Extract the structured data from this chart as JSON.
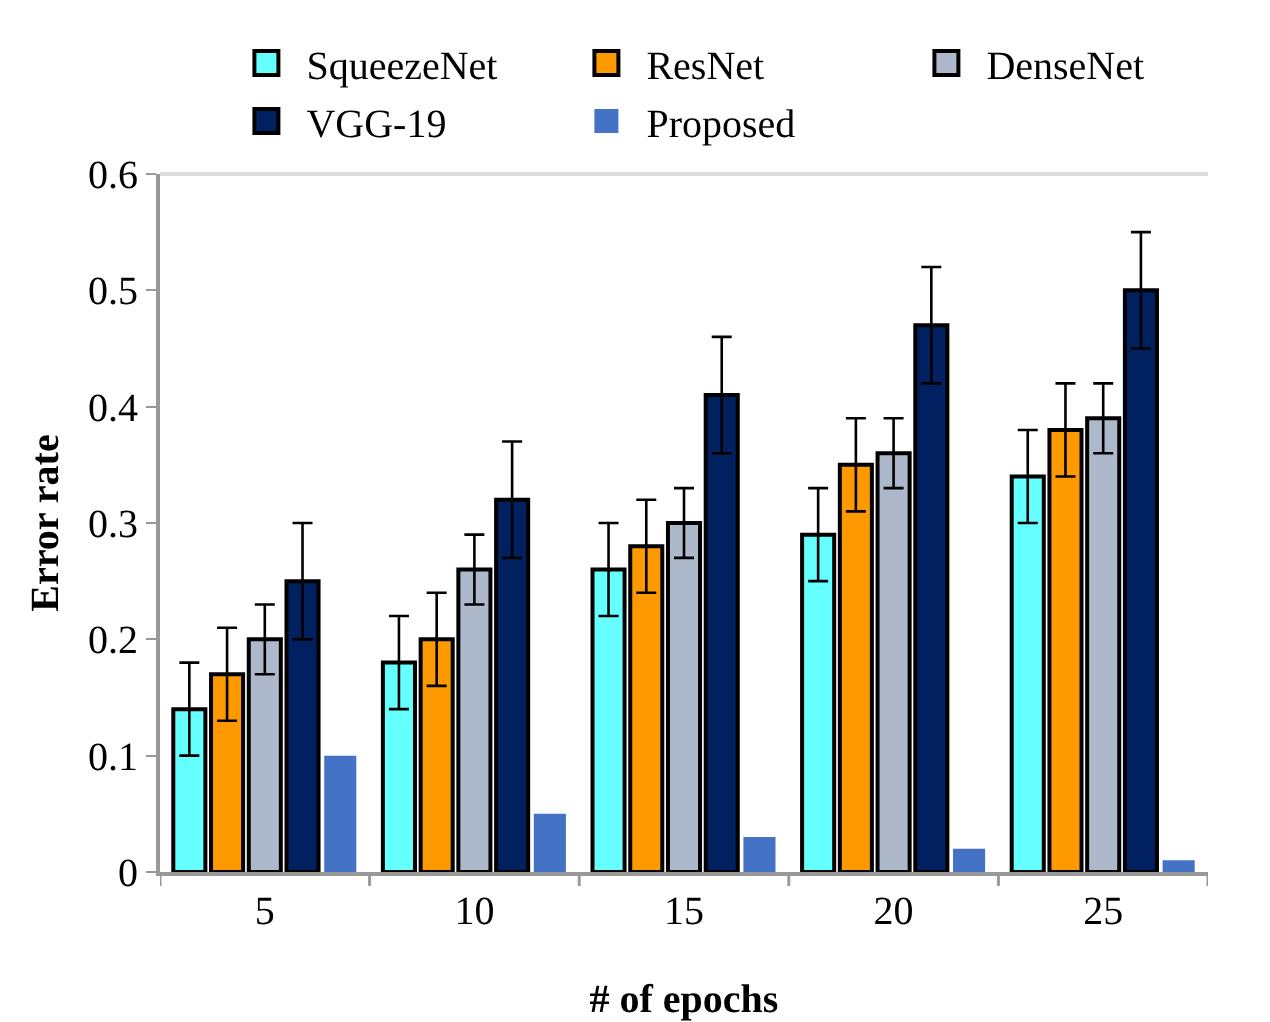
{
  "chart_data": {
    "type": "bar",
    "xlabel": "# of epochs",
    "ylabel": "Error rate",
    "categories": [
      "5",
      "10",
      "15",
      "20",
      "25"
    ],
    "series": [
      {
        "name": "SqueezeNet",
        "color": "#66ffff",
        "values": [
          0.14,
          0.18,
          0.26,
          0.29,
          0.34
        ],
        "errors": [
          0.04,
          0.04,
          0.04,
          0.04,
          0.04
        ]
      },
      {
        "name": "ResNet",
        "color": "#ff9900",
        "values": [
          0.17,
          0.2,
          0.28,
          0.35,
          0.38
        ],
        "errors": [
          0.04,
          0.04,
          0.04,
          0.04,
          0.04
        ]
      },
      {
        "name": "DenseNet",
        "color": "#adb9ca",
        "values": [
          0.2,
          0.26,
          0.3,
          0.36,
          0.39
        ],
        "errors": [
          0.03,
          0.03,
          0.03,
          0.03,
          0.03
        ]
      },
      {
        "name": "VGG-19",
        "color": "#002060",
        "values": [
          0.25,
          0.32,
          0.41,
          0.47,
          0.5
        ],
        "errors": [
          0.05,
          0.05,
          0.05,
          0.05,
          0.05
        ]
      },
      {
        "name": "Proposed",
        "color": "#4472c4",
        "values": [
          0.1,
          0.05,
          0.03,
          0.02,
          0.01
        ]
      }
    ],
    "ylim": [
      0,
      0.6
    ],
    "yticks": [
      0,
      0.1,
      0.2,
      0.3,
      0.4,
      0.5,
      0.6
    ],
    "grid": false,
    "legend": "top"
  }
}
